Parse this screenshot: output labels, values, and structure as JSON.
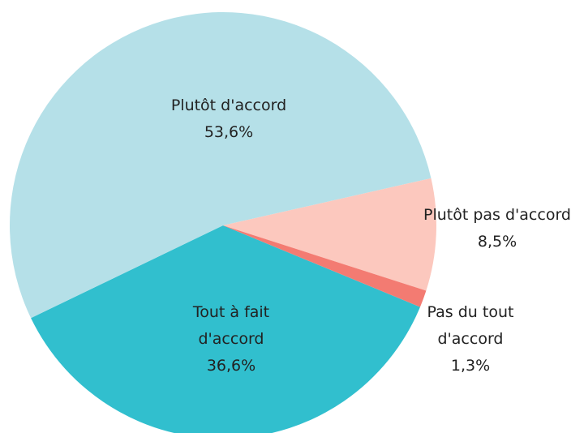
{
  "chart_data": {
    "type": "pie",
    "categories": [
      "Tout à fait d'accord",
      "Plutôt d'accord",
      "Plutôt pas d'accord",
      "Pas du tout d'accord"
    ],
    "values": [
      36.6,
      53.6,
      8.5,
      1.3
    ],
    "value_labels": [
      "36,6%",
      "53,6%",
      "8,5%",
      "1,3%"
    ],
    "colors": [
      "#31bfce",
      "#b5e0e8",
      "#fcc8be",
      "#f37b72"
    ]
  }
}
